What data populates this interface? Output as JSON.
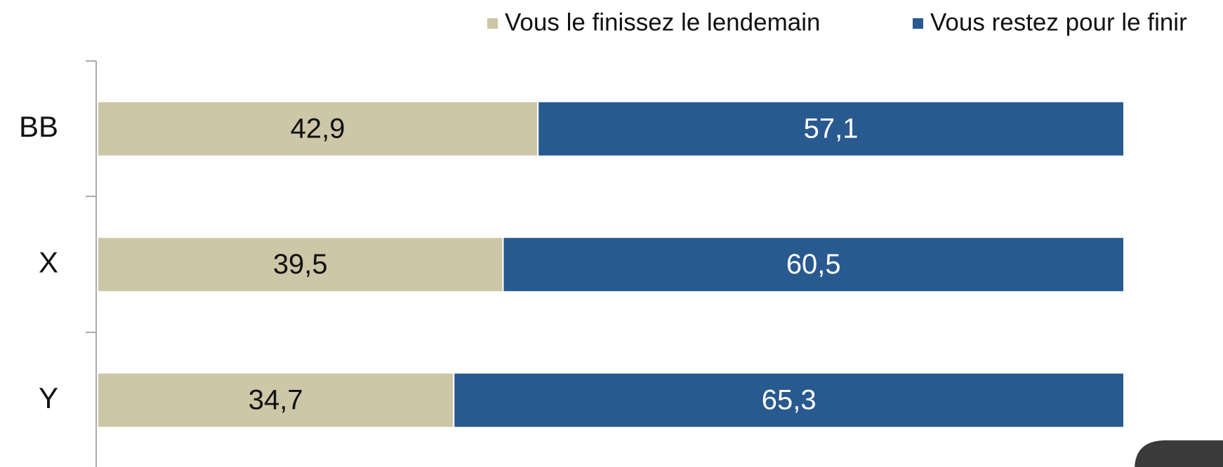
{
  "chart_data": {
    "type": "stacked_bar_horizontal",
    "categories": [
      "BB",
      "X",
      "Y"
    ],
    "series": [
      {
        "name": "Vous le finissez le lendemain",
        "color": "#cdc6a7",
        "values": [
          42.9,
          39.5,
          34.7
        ],
        "value_labels": [
          "42,9",
          "39,5",
          "34,7"
        ]
      },
      {
        "name": "Vous restez pour le finir",
        "color": "#285a8f",
        "values": [
          57.1,
          60.5,
          65.3
        ],
        "value_labels": [
          "57,1",
          "60,5",
          "65,3"
        ]
      }
    ],
    "xlim": [
      0,
      100
    ],
    "legend": "top-right"
  }
}
